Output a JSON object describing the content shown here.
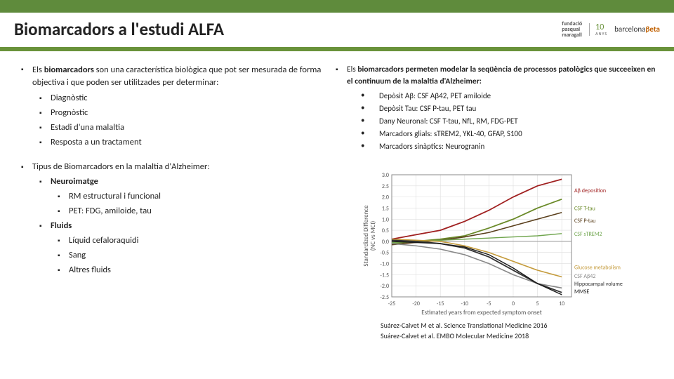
{
  "title": "Biomarcadors a l'estudi ALFA",
  "header_color": "#5f8b3c",
  "divider_color": "#69923a",
  "logos": {
    "fpm_line1": "fundació",
    "fpm_line2": "pasqual",
    "fpm_line3": "maragall",
    "years": "10",
    "years_sub": "ANYS",
    "bcn": "barcelona",
    "bcn_beta": "βeta"
  },
  "left": {
    "intro_pre": "Els ",
    "intro_bold": "biomarcadors",
    "intro_post": " son una característica biològica que pot ser mesurada de forma objectiva i que poden ser utilitzades per determinar:",
    "uses": [
      "Diagnòstic",
      "Prognòstic",
      "Estadi d'una malaltia",
      "Resposta a un tractament"
    ],
    "types_title": "Tipus de Biomarcadors en la malaltia d'Alzheimer:",
    "cat1": "Neuroimatge",
    "cat1_items": [
      "RM estructural i funcional",
      "PET: FDG, amiloide, tau"
    ],
    "cat2": "Fluids",
    "cat2_items": [
      "Líquid cefaloraquidi",
      "Sang",
      "Altres fluids"
    ]
  },
  "right": {
    "intro_pre": "Els ",
    "intro_bold": "biomarcadors permeten modelar la seqüència de processos patològics que succeeixen en el continuum de la malaltia d'Alzheimer:",
    "bullets": [
      "Depòsit Aβ: CSF Aβ42, PET amiloide",
      "Depòsit Tau: CSF P-tau, PET tau",
      "Dany Neuronal: CSF T-tau, NfL, RM, FDG-PET",
      "Marcadors glials: sTREM2, YKL-40, GFAP, S100",
      "Marcadors sinàptics: Neurogranin"
    ],
    "cite1": "Suárez-Calvet M et al. Science Translational Medicine 2016",
    "cite2": "Suárez-Calvet et al. EMBO Molecular Medicine 2018"
  },
  "chart": {
    "type": "line",
    "background_color": "#ffffff",
    "grid_color": "#dddddd",
    "axis_color": "#888888",
    "ylabel": "Standardized Difference\n(NC vs MCI)",
    "xlabel": "Estimated years from expected symptom onset",
    "xlim": [
      -25,
      12
    ],
    "xtick_step": 5,
    "ylim": [
      -2.5,
      3.0
    ],
    "ytick_step": 0.5,
    "series": [
      {
        "name": "Aβ deposition",
        "color": "#a02020",
        "width": 1.8,
        "label_y": 2.3,
        "data": [
          [
            -25,
            0.1
          ],
          [
            -20,
            0.3
          ],
          [
            -15,
            0.5
          ],
          [
            -10,
            0.9
          ],
          [
            -5,
            1.4
          ],
          [
            0,
            2.0
          ],
          [
            5,
            2.5
          ],
          [
            10,
            2.8
          ]
        ]
      },
      {
        "name": "CSF T-tau",
        "color": "#6a8a28",
        "width": 1.8,
        "label_y": 1.5,
        "data": [
          [
            -25,
            -0.1
          ],
          [
            -20,
            0.0
          ],
          [
            -15,
            0.1
          ],
          [
            -10,
            0.25
          ],
          [
            -5,
            0.6
          ],
          [
            0,
            1.0
          ],
          [
            5,
            1.5
          ],
          [
            10,
            1.9
          ]
        ]
      },
      {
        "name": "CSF P-tau",
        "color": "#5a3f1c",
        "width": 1.6,
        "label_y": 0.95,
        "data": [
          [
            -25,
            -0.15
          ],
          [
            -20,
            -0.05
          ],
          [
            -15,
            0.05
          ],
          [
            -10,
            0.2
          ],
          [
            -5,
            0.4
          ],
          [
            0,
            0.7
          ],
          [
            5,
            1.0
          ],
          [
            10,
            1.3
          ]
        ]
      },
      {
        "name": "CSF sTREM2",
        "color": "#6fa54d",
        "width": 1.4,
        "label_y": 0.35,
        "data": [
          [
            -25,
            -0.05
          ],
          [
            -20,
            0.0
          ],
          [
            -15,
            0.05
          ],
          [
            -10,
            0.1
          ],
          [
            -5,
            0.15
          ],
          [
            0,
            0.2
          ],
          [
            5,
            0.25
          ],
          [
            10,
            0.35
          ]
        ]
      },
      {
        "name": "Glucose metabolism",
        "color": "#c49a3a",
        "width": 1.6,
        "label_y": -1.15,
        "data": [
          [
            -25,
            0.1
          ],
          [
            -20,
            0.05
          ],
          [
            -15,
            0.0
          ],
          [
            -10,
            -0.2
          ],
          [
            -5,
            -0.5
          ],
          [
            0,
            -0.9
          ],
          [
            5,
            -1.3
          ],
          [
            10,
            -1.6
          ]
        ]
      },
      {
        "name": "CSF Aβ42",
        "color": "#888888",
        "width": 1.6,
        "label_y": -1.55,
        "data": [
          [
            -25,
            -0.1
          ],
          [
            -20,
            -0.2
          ],
          [
            -15,
            -0.35
          ],
          [
            -10,
            -0.6
          ],
          [
            -5,
            -1.0
          ],
          [
            0,
            -1.5
          ],
          [
            5,
            -1.9
          ],
          [
            10,
            -2.1
          ]
        ]
      },
      {
        "name": "Hippocampal volume",
        "color": "#333333",
        "width": 1.8,
        "label_y": -1.9,
        "data": [
          [
            -25,
            0.05
          ],
          [
            -20,
            0.0
          ],
          [
            -15,
            -0.1
          ],
          [
            -10,
            -0.3
          ],
          [
            -5,
            -0.7
          ],
          [
            0,
            -1.3
          ],
          [
            5,
            -1.9
          ],
          [
            10,
            -2.3
          ]
        ]
      },
      {
        "name": "MMSE",
        "color": "#1a1a1a",
        "width": 1.4,
        "label_y": -2.25,
        "data": [
          [
            -25,
            0.0
          ],
          [
            -20,
            -0.05
          ],
          [
            -15,
            -0.1
          ],
          [
            -10,
            -0.25
          ],
          [
            -5,
            -0.6
          ],
          [
            0,
            -1.2
          ],
          [
            5,
            -1.9
          ],
          [
            10,
            -2.4
          ]
        ]
      }
    ]
  }
}
